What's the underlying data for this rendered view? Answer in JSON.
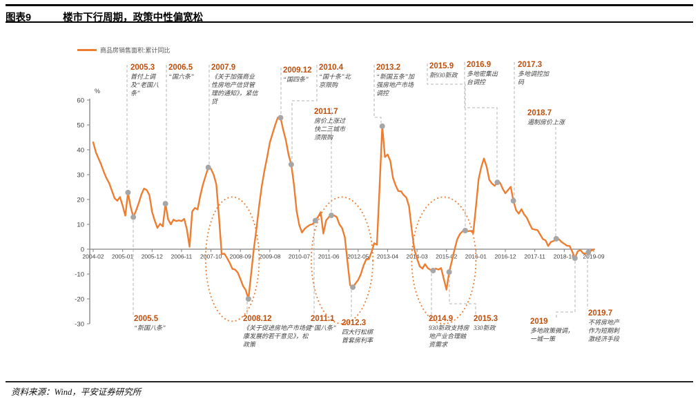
{
  "header": {
    "label": "图表9",
    "title": "楼市下行周期，政策中性偏宽松"
  },
  "footer": {
    "source": "资料来源：Wind，平安证券研究所"
  },
  "chart_data": {
    "type": "line",
    "unit_label": "%",
    "legend": [
      "商品房销售面积:累计同比"
    ],
    "series_color": "#ED7D31",
    "marker_color": "#A6A6A6",
    "ylim": [
      -30,
      60
    ],
    "yticks": [
      60,
      50,
      40,
      30,
      20,
      10,
      0,
      -10,
      -20,
      -30
    ],
    "x_tick_labels": [
      "2004-02",
      "2005-01",
      "2005-12",
      "2006-11",
      "2007-10",
      "2008-09",
      "2009-08",
      "2010-07",
      "2011-06",
      "2012-05",
      "2013-04",
      "2014-03",
      "2015-02",
      "2016-01",
      "2016-12",
      "2017-11",
      "2018-10",
      "2019-09"
    ],
    "start_month": "2004-02",
    "end_month": "2019-09",
    "values": [
      43.0,
      39.0,
      36.5,
      34.0,
      31.0,
      28.5,
      26.5,
      23.5,
      20.5,
      19.5,
      21.0,
      17.5,
      13.5,
      22.8,
      17.0,
      12.9,
      15.5,
      18.5,
      22.0,
      24.4,
      23.8,
      21.8,
      15.0,
      11.5,
      8.6,
      10.2,
      9.2,
      18.3,
      12.0,
      10.0,
      11.9,
      11.3,
      11.6,
      11.3,
      12.2,
      8.0,
      1.0,
      15.2,
      16.6,
      16.0,
      21.5,
      26.0,
      29.5,
      32.9,
      32.3,
      30.0,
      26.1,
      13.0,
      -2.0,
      -1.8,
      -3.5,
      -5.5,
      -7.9,
      -8.2,
      -9.4,
      -12.0,
      -14.8,
      -16.5,
      -20.0,
      -10.0,
      0.0,
      8.2,
      17.5,
      25.5,
      31.7,
      37.1,
      42.9,
      46.5,
      50.0,
      53.0,
      52.9,
      48.0,
      43.8,
      38.0,
      34.1,
      26.0,
      15.4,
      9.7,
      6.7,
      8.2,
      9.1,
      9.8,
      10.1,
      11.5,
      13.0,
      14.9,
      6.3,
      11.5,
      12.9,
      13.6,
      13.6,
      12.9,
      10.0,
      8.5,
      4.9,
      -5.0,
      -14.5,
      -15.3,
      -13.8,
      -12.4,
      -10.0,
      -6.6,
      -4.1,
      -4.0,
      -1.1,
      2.4,
      1.8,
      25.0,
      49.5,
      37.1,
      38.1,
      35.6,
      28.7,
      25.7,
      23.4,
      23.3,
      21.8,
      20.8,
      17.3,
      8.0,
      -0.1,
      -3.8,
      -6.9,
      -7.8,
      -6.0,
      -7.6,
      -8.3,
      -8.6,
      -7.8,
      -8.2,
      -7.6,
      -12.0,
      -16.3,
      -9.2,
      -4.8,
      -0.2,
      3.9,
      6.1,
      7.2,
      7.5,
      7.2,
      7.4,
      6.5,
      17.0,
      28.2,
      33.1,
      36.5,
      33.2,
      27.9,
      26.4,
      25.5,
      26.9,
      26.8,
      24.3,
      22.5,
      23.8,
      25.1,
      19.5,
      15.7,
      14.3,
      16.1,
      14.0,
      12.7,
      10.3,
      8.2,
      7.9,
      7.7,
      5.9,
      4.1,
      3.6,
      1.3,
      2.9,
      3.3,
      4.2,
      4.0,
      2.9,
      2.2,
      1.4,
      1.3,
      -1.0,
      -3.6,
      -0.9,
      -0.3,
      -1.6,
      -1.8,
      -1.3,
      -0.6,
      -0.1
    ],
    "annotations_top": [
      {
        "date": "2005.3",
        "text": "首付上调及“老国八条”",
        "month": "2005-03",
        "value": 22.8
      },
      {
        "date": "2006.5",
        "text": "“国六条”",
        "month": "2006-05",
        "value": 18.3
      },
      {
        "date": "2007.9",
        "text": "《关于加强商业性房地产信贷管理的通知》，紧信贷",
        "month": "2007-09",
        "value": 32.9
      },
      {
        "date": "2009.12",
        "text": "“国四条”",
        "month": "2009-12",
        "value": 52.9
      },
      {
        "date": "2010.4",
        "text": "“国十条”北京限购",
        "month": "2010-04",
        "value": 34.1
      },
      {
        "date": "2011.7",
        "text": "房价上涨过快二三城市须限购",
        "month": "2011-07",
        "value": 13.6
      },
      {
        "date": "2013.2",
        "text": "“新国五条”加强房地产市场调控",
        "month": "2013-02",
        "value": 49.5
      },
      {
        "date": "2015.9",
        "text": "新930新政",
        "month": "2015-09",
        "value": 7.5
      },
      {
        "date": "2016.9",
        "text": "多地密集出台调控",
        "month": "2016-09",
        "value": 26.9
      },
      {
        "date": "2017.3",
        "text": "多地调控加码",
        "month": "2017-03",
        "value": 19.5
      },
      {
        "date": "2018.7",
        "text": "遏制房价上涨",
        "month": "2018-07",
        "value": 4.2
      }
    ],
    "annotations_bottom": [
      {
        "date": "2005.5",
        "text": "“新国八条”",
        "month": "2005-05",
        "value": 12.9
      },
      {
        "date": "2008.12",
        "text": "《关于促进房地产市场健康发展的若干意见》，松政策",
        "month": "2008-12",
        "value": -20.0
      },
      {
        "date": "2011.1",
        "text": "“国八条”",
        "month": "2011-01",
        "value": 11.5
      },
      {
        "date": "2012.3",
        "text": "四大行松绑首套房利率",
        "month": "2012-03",
        "value": -15.3
      },
      {
        "date": "2014.9",
        "text": "930新政支持房地产业合理融资需求",
        "month": "2014-09",
        "value": -8.6
      },
      {
        "date": "2015.3",
        "text": "330新政",
        "month": "2015-03",
        "value": -9.2
      },
      {
        "date": "2019",
        "text": "多地政策微调，一城一策",
        "month": "2019-02",
        "value": -3.6
      },
      {
        "date": "2019.7",
        "text": "不将房地产作为短期刺激经济手段",
        "month": "2019-07",
        "value": -1.3
      }
    ],
    "cycle_ellipses": [
      {
        "center_month": "2008-06",
        "center_value": -4.0,
        "rx_months": 10.0,
        "ry_values": 25.0
      },
      {
        "center_month": "2011-11",
        "center_value": -4.5,
        "rx_months": 11.5,
        "ry_values": 25.5
      },
      {
        "center_month": "2015-01",
        "center_value": -4.5,
        "rx_months": 12.0,
        "ry_values": 25.5
      }
    ]
  }
}
